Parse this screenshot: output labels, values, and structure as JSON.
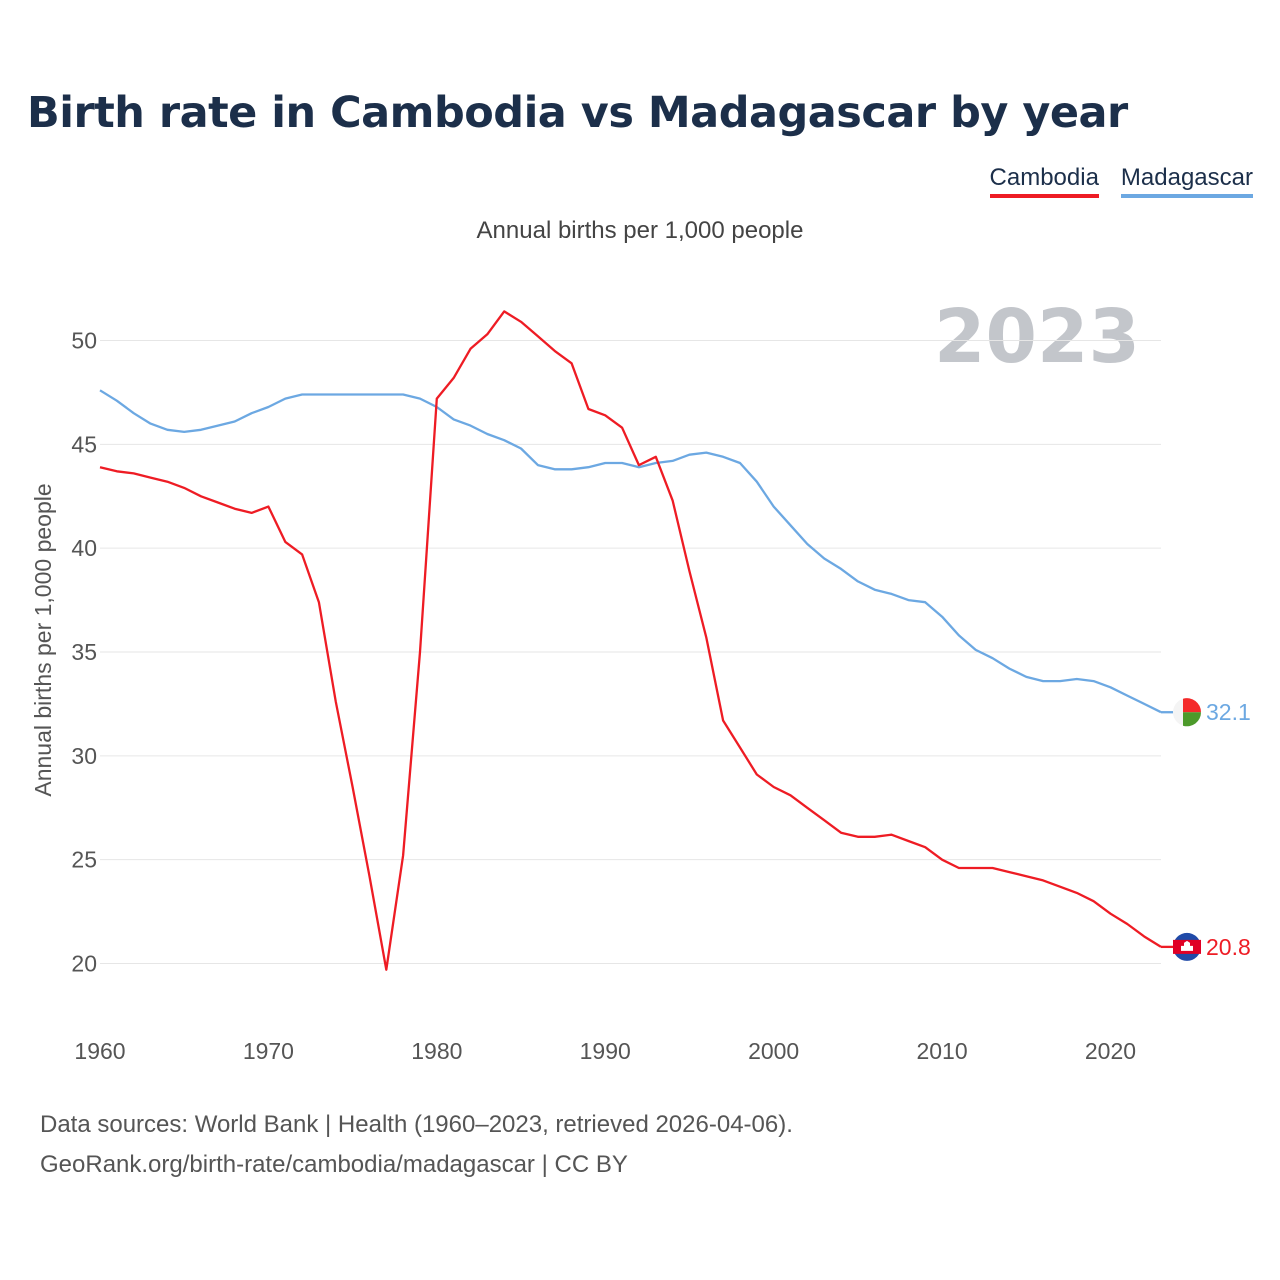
{
  "header": {
    "title": "Birth rate in Cambodia vs Madagascar by year",
    "subtitle": "Annual births per 1,000 people"
  },
  "legend": [
    {
      "name": "Cambodia",
      "color": "#ee1c24"
    },
    {
      "name": "Madagascar",
      "color": "#6ca8e2"
    }
  ],
  "footer": {
    "source_line1": "Data sources: World Bank | Health (1960–2023, retrieved 2026-04-06).",
    "source_line2": "GeoRank.org/birth-rate/cambodia/madagascar | CC BY"
  },
  "chart_data": {
    "type": "line",
    "title": "Birth rate in Cambodia vs Madagascar by year",
    "subtitle": "Annual births per 1,000 people",
    "xlabel": "",
    "ylabel": "Annual births per 1,000 people",
    "xlim": [
      1960,
      2023
    ],
    "ylim": [
      18,
      52.5
    ],
    "x_ticks": [
      1960,
      1970,
      1980,
      1990,
      2000,
      2010,
      2020
    ],
    "y_ticks": [
      20,
      25,
      30,
      35,
      40,
      45,
      50
    ],
    "grid": true,
    "year_watermark": "2023",
    "x": [
      1960,
      1961,
      1962,
      1963,
      1964,
      1965,
      1966,
      1967,
      1968,
      1969,
      1970,
      1971,
      1972,
      1973,
      1974,
      1975,
      1976,
      1977,
      1978,
      1979,
      1980,
      1981,
      1982,
      1983,
      1984,
      1985,
      1986,
      1987,
      1988,
      1989,
      1990,
      1991,
      1992,
      1993,
      1994,
      1995,
      1996,
      1997,
      1998,
      1999,
      2000,
      2001,
      2002,
      2003,
      2004,
      2005,
      2006,
      2007,
      2008,
      2009,
      2010,
      2011,
      2012,
      2013,
      2014,
      2015,
      2016,
      2017,
      2018,
      2019,
      2020,
      2021,
      2022,
      2023
    ],
    "series": [
      {
        "name": "Cambodia",
        "color": "#ee1c24",
        "end_label": "20.8",
        "values": [
          43.9,
          43.7,
          43.6,
          43.4,
          43.2,
          42.9,
          42.5,
          42.2,
          41.9,
          41.7,
          42.0,
          40.3,
          39.7,
          37.4,
          32.6,
          28.5,
          24.2,
          19.7,
          25.2,
          35.0,
          47.2,
          48.2,
          49.6,
          50.3,
          51.4,
          50.9,
          50.2,
          49.5,
          48.9,
          46.7,
          46.4,
          45.8,
          44.0,
          44.4,
          42.3,
          38.9,
          35.7,
          31.7,
          30.4,
          29.1,
          28.5,
          28.1,
          27.5,
          26.9,
          26.3,
          26.1,
          26.1,
          26.2,
          25.9,
          25.6,
          25.0,
          24.6,
          24.6,
          24.6,
          24.4,
          24.2,
          24.0,
          23.7,
          23.4,
          23.0,
          22.4,
          21.9,
          21.3,
          20.8
        ]
      },
      {
        "name": "Madagascar",
        "color": "#6ca8e2",
        "end_label": "32.1",
        "values": [
          47.6,
          47.1,
          46.5,
          46.0,
          45.7,
          45.6,
          45.7,
          45.9,
          46.1,
          46.5,
          46.8,
          47.2,
          47.4,
          47.4,
          47.4,
          47.4,
          47.4,
          47.4,
          47.4,
          47.2,
          46.8,
          46.2,
          45.9,
          45.5,
          45.2,
          44.8,
          44.0,
          43.8,
          43.8,
          43.9,
          44.1,
          44.1,
          43.9,
          44.1,
          44.2,
          44.5,
          44.6,
          44.4,
          44.1,
          43.2,
          42.0,
          41.1,
          40.2,
          39.5,
          39.0,
          38.4,
          38.0,
          37.8,
          37.5,
          37.4,
          36.7,
          35.8,
          35.1,
          34.7,
          34.2,
          33.8,
          33.6,
          33.6,
          33.7,
          33.6,
          33.3,
          32.9,
          32.5,
          32.1
        ]
      }
    ]
  }
}
